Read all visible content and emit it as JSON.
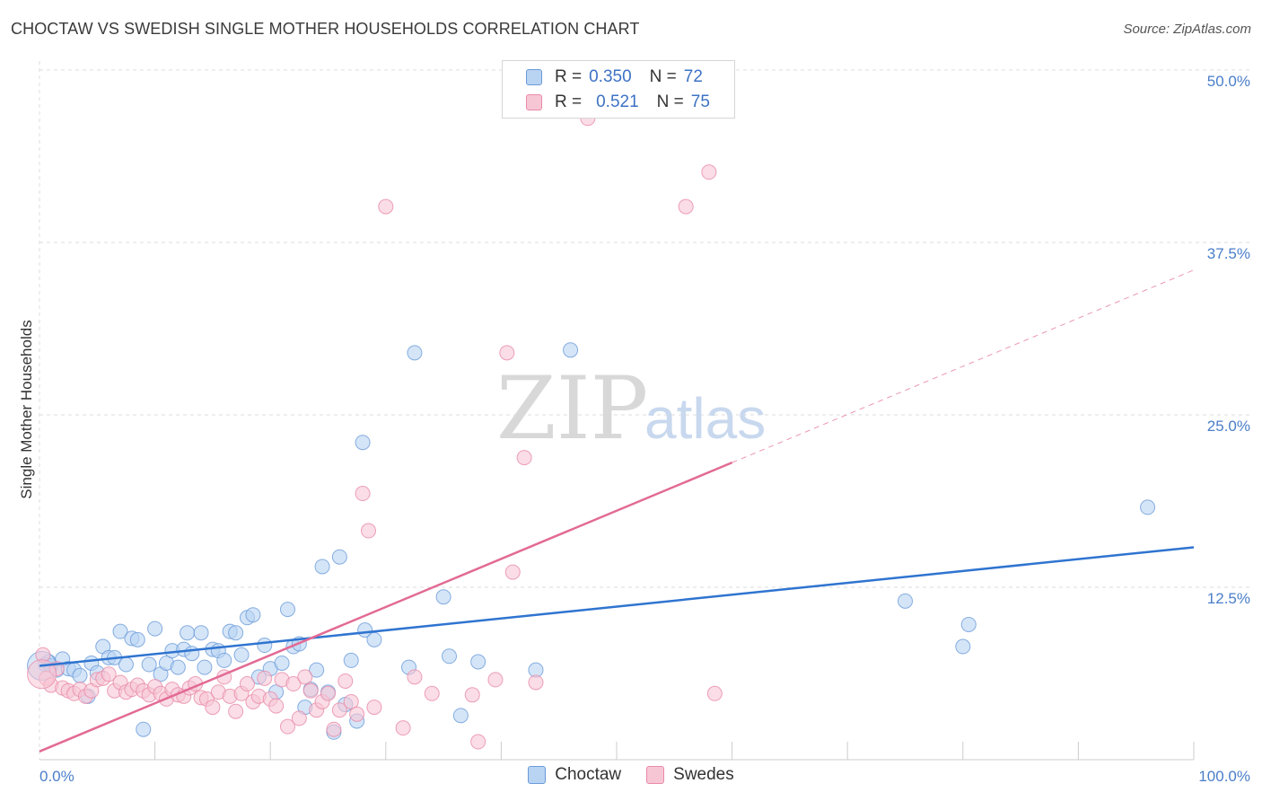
{
  "title": "CHOCTAW VS SWEDISH SINGLE MOTHER HOUSEHOLDS CORRELATION CHART",
  "source": "Source: ZipAtlas.com",
  "watermark": {
    "zip": "ZIP",
    "atlas": "atlas"
  },
  "legend": {
    "rows": [
      {
        "r_label": "R =",
        "r_value": "0.350",
        "n_label": "N =",
        "n_value": "72"
      },
      {
        "r_label": "R =",
        "r_value": "0.521",
        "n_label": "N =",
        "n_value": "75"
      }
    ]
  },
  "colors": {
    "choctaw_fill": "#b9d3f3",
    "choctaw_stroke": "#6a9bd8",
    "choctaw_line": "#2f74d0",
    "swedes_fill": "#f7c6d5",
    "swedes_stroke": "#e98aa8",
    "swedes_line": "#e26a94",
    "grid": "#dedede",
    "tick_text": "#4a7ec9"
  },
  "chart_data": {
    "type": "scatter",
    "ylabel": "Single Mother Households",
    "xlabel": "",
    "xlim": [
      0,
      100
    ],
    "ylim": [
      0,
      50
    ],
    "x_tick_labels": [
      {
        "value": 0,
        "label": "0.0%"
      },
      {
        "value": 100,
        "label": "100.0%"
      }
    ],
    "y_tick_labels": [
      {
        "value": 12.5,
        "label": "12.5%"
      },
      {
        "value": 25,
        "label": "25.0%"
      },
      {
        "value": 37.5,
        "label": "37.5%"
      },
      {
        "value": 50,
        "label": "50.0%"
      }
    ],
    "grid": true,
    "legend_position": "top-center",
    "series": [
      {
        "name": "Choctaw",
        "trend": {
          "x": [
            0,
            100
          ],
          "y": [
            6.8,
            15.4
          ],
          "dashed_from": null
        },
        "points": [
          [
            0.5,
            6.9
          ],
          [
            0.8,
            7.1
          ],
          [
            1.0,
            6.8
          ],
          [
            1.5,
            6.5
          ],
          [
            2.0,
            7.3
          ],
          [
            2.5,
            6.6
          ],
          [
            3.0,
            6.5
          ],
          [
            3.5,
            6.1
          ],
          [
            4.2,
            4.6
          ],
          [
            4.5,
            7.0
          ],
          [
            5.0,
            6.3
          ],
          [
            5.5,
            8.2
          ],
          [
            6.0,
            7.4
          ],
          [
            6.5,
            7.4
          ],
          [
            7.0,
            9.3
          ],
          [
            7.5,
            6.9
          ],
          [
            8.0,
            8.8
          ],
          [
            8.5,
            8.7
          ],
          [
            9.0,
            2.2
          ],
          [
            9.5,
            6.9
          ],
          [
            10.0,
            9.5
          ],
          [
            10.5,
            6.2
          ],
          [
            11.0,
            7.0
          ],
          [
            11.5,
            7.9
          ],
          [
            12.0,
            6.7
          ],
          [
            12.5,
            8.0
          ],
          [
            12.8,
            9.2
          ],
          [
            13.2,
            7.7
          ],
          [
            14.0,
            9.2
          ],
          [
            14.3,
            6.7
          ],
          [
            15.0,
            8.0
          ],
          [
            15.5,
            7.9
          ],
          [
            16.0,
            7.2
          ],
          [
            16.5,
            9.3
          ],
          [
            17.0,
            9.2
          ],
          [
            17.5,
            7.6
          ],
          [
            18.0,
            10.3
          ],
          [
            18.5,
            10.5
          ],
          [
            19.0,
            6.0
          ],
          [
            19.5,
            8.3
          ],
          [
            20.0,
            6.6
          ],
          [
            20.5,
            4.9
          ],
          [
            21.0,
            7.0
          ],
          [
            21.5,
            10.9
          ],
          [
            22.0,
            8.2
          ],
          [
            22.5,
            8.4
          ],
          [
            23.0,
            3.8
          ],
          [
            23.5,
            5.1
          ],
          [
            24.0,
            6.5
          ],
          [
            24.5,
            14.0
          ],
          [
            25.0,
            4.9
          ],
          [
            25.5,
            2.0
          ],
          [
            26.0,
            14.7
          ],
          [
            26.5,
            4.0
          ],
          [
            27.0,
            7.2
          ],
          [
            27.5,
            2.8
          ],
          [
            28.0,
            23.0
          ],
          [
            28.2,
            9.4
          ],
          [
            29.0,
            8.7
          ],
          [
            32.0,
            6.7
          ],
          [
            32.5,
            29.5
          ],
          [
            35.0,
            11.8
          ],
          [
            35.5,
            7.5
          ],
          [
            36.5,
            3.2
          ],
          [
            38.0,
            7.1
          ],
          [
            43.0,
            6.5
          ],
          [
            46.0,
            29.7
          ],
          [
            75.0,
            11.5
          ],
          [
            80.0,
            8.2
          ],
          [
            80.5,
            9.8
          ],
          [
            96.0,
            18.3
          ],
          [
            0.2,
            6.8
          ]
        ]
      },
      {
        "name": "Swedes",
        "trend": {
          "x": [
            0,
            100
          ],
          "y": [
            0.6,
            35.5
          ],
          "dashed_from": 60
        },
        "points": [
          [
            0.3,
            7.6
          ],
          [
            0.6,
            5.9
          ],
          [
            1.0,
            5.4
          ],
          [
            1.5,
            6.6
          ],
          [
            2.0,
            5.2
          ],
          [
            2.5,
            5.0
          ],
          [
            3.0,
            4.8
          ],
          [
            3.5,
            5.1
          ],
          [
            4.0,
            4.6
          ],
          [
            4.5,
            5.0
          ],
          [
            5.0,
            5.8
          ],
          [
            5.5,
            5.9
          ],
          [
            6.0,
            6.2
          ],
          [
            6.5,
            5.0
          ],
          [
            7.0,
            5.6
          ],
          [
            7.5,
            4.9
          ],
          [
            8.0,
            5.1
          ],
          [
            8.5,
            5.4
          ],
          [
            9.0,
            5.0
          ],
          [
            9.5,
            4.7
          ],
          [
            10.0,
            5.3
          ],
          [
            10.5,
            4.8
          ],
          [
            11.0,
            4.4
          ],
          [
            11.5,
            5.1
          ],
          [
            12.0,
            4.7
          ],
          [
            12.5,
            4.6
          ],
          [
            13.0,
            5.2
          ],
          [
            13.5,
            5.5
          ],
          [
            14.0,
            4.5
          ],
          [
            14.5,
            4.4
          ],
          [
            15.0,
            3.8
          ],
          [
            15.5,
            4.9
          ],
          [
            16.0,
            6.0
          ],
          [
            16.5,
            4.6
          ],
          [
            17.0,
            3.5
          ],
          [
            17.5,
            4.8
          ],
          [
            18.0,
            5.5
          ],
          [
            18.5,
            4.2
          ],
          [
            19.0,
            4.6
          ],
          [
            19.5,
            5.9
          ],
          [
            20.0,
            4.4
          ],
          [
            20.5,
            3.9
          ],
          [
            21.0,
            5.8
          ],
          [
            21.5,
            2.4
          ],
          [
            22.0,
            5.5
          ],
          [
            22.5,
            3.0
          ],
          [
            23.0,
            6.0
          ],
          [
            23.5,
            5.0
          ],
          [
            24.0,
            3.6
          ],
          [
            24.5,
            4.2
          ],
          [
            25.0,
            4.8
          ],
          [
            25.5,
            2.2
          ],
          [
            26.0,
            3.6
          ],
          [
            26.5,
            5.7
          ],
          [
            27.0,
            4.2
          ],
          [
            27.5,
            3.3
          ],
          [
            28.0,
            19.3
          ],
          [
            28.5,
            16.6
          ],
          [
            29.0,
            3.8
          ],
          [
            30.0,
            40.1
          ],
          [
            31.5,
            2.3
          ],
          [
            32.5,
            6.0
          ],
          [
            34.0,
            4.8
          ],
          [
            37.5,
            4.7
          ],
          [
            38.0,
            1.3
          ],
          [
            39.5,
            5.8
          ],
          [
            40.5,
            29.5
          ],
          [
            42.0,
            21.9
          ],
          [
            41.0,
            13.6
          ],
          [
            43.0,
            5.6
          ],
          [
            47.5,
            46.5
          ],
          [
            56.0,
            40.1
          ],
          [
            58.0,
            42.6
          ],
          [
            58.5,
            4.8
          ],
          [
            0.2,
            6.2
          ]
        ]
      }
    ]
  },
  "bottom_legend": [
    {
      "name": "Choctaw"
    },
    {
      "name": "Swedes"
    }
  ]
}
